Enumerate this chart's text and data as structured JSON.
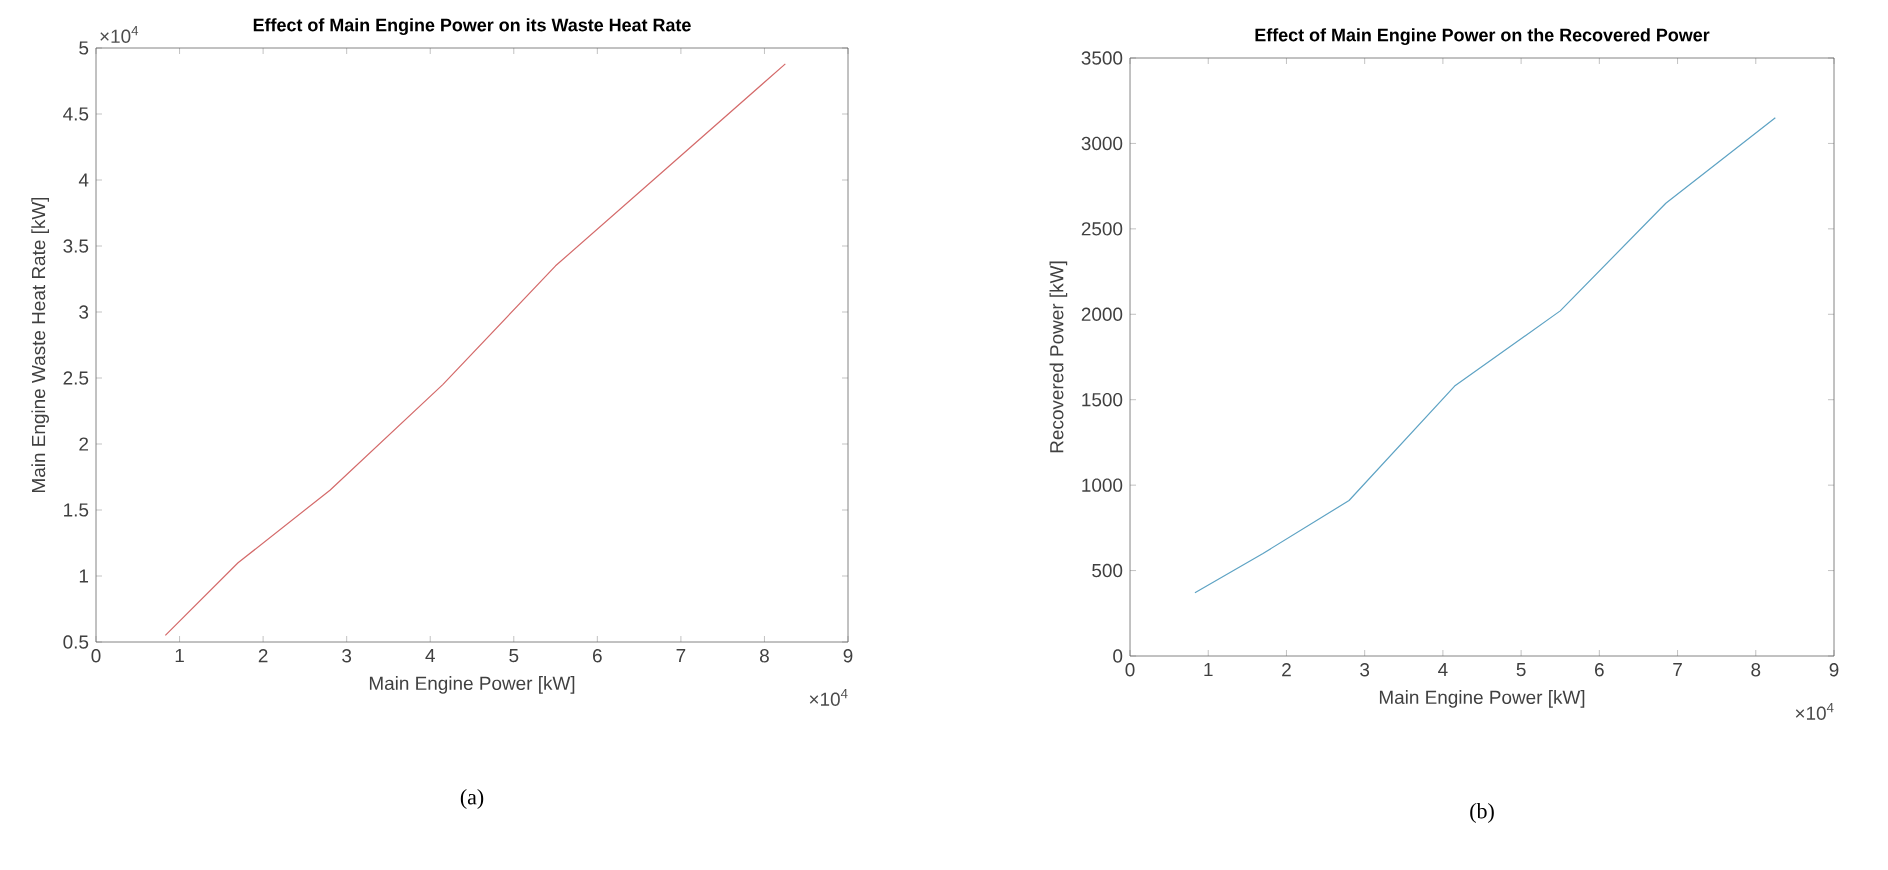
{
  "chart_data": [
    {
      "type": "line",
      "title": "Effect of Main Engine Power on its Waste Heat Rate",
      "xlabel": "Main Engine Power [kW]",
      "ylabel": "Main Engine Waste Heat Rate [kW]",
      "annotations": [
        "×10$^{4}$",
        "×10$^{4}$",
        "(a)"
      ],
      "x": [
        0.83,
        1.7,
        2.8,
        4.15,
        5.5,
        6.85,
        8.25
      ],
      "series": [
        {
          "color": "#d46a6a",
          "values": [
            0.55,
            1.1,
            1.65,
            2.45,
            3.35,
            4.1,
            4.88
          ]
        }
      ],
      "xlim": [
        0,
        9
      ],
      "ylim": [
        0.5,
        5
      ],
      "xticks": [
        0,
        1,
        2,
        3,
        4,
        5,
        6,
        7,
        8,
        9
      ],
      "yticks": [
        0.5,
        1,
        1.5,
        2,
        2.5,
        3,
        3.5,
        4,
        4.5,
        5
      ]
    },
    {
      "type": "line",
      "title": "Effect of Main Engine Power on the Recovered Power",
      "xlabel": "Main Engine Power [kW]",
      "ylabel": "Recovered Power [kW]",
      "annotations": [
        "×10$^{4}$",
        "(b)"
      ],
      "x": [
        0.83,
        1.7,
        2.8,
        4.15,
        5.5,
        6.85,
        8.25
      ],
      "series": [
        {
          "color": "#5ea3c4",
          "values": [
            370,
            600,
            910,
            1580,
            2020,
            2650,
            3150
          ]
        }
      ],
      "xlim": [
        0,
        9
      ],
      "ylim": [
        0,
        3500
      ],
      "xticks": [
        0,
        1,
        2,
        3,
        4,
        5,
        6,
        7,
        8,
        9
      ],
      "yticks": [
        0,
        500,
        1000,
        1500,
        2000,
        2500,
        3000,
        3500
      ]
    }
  ]
}
